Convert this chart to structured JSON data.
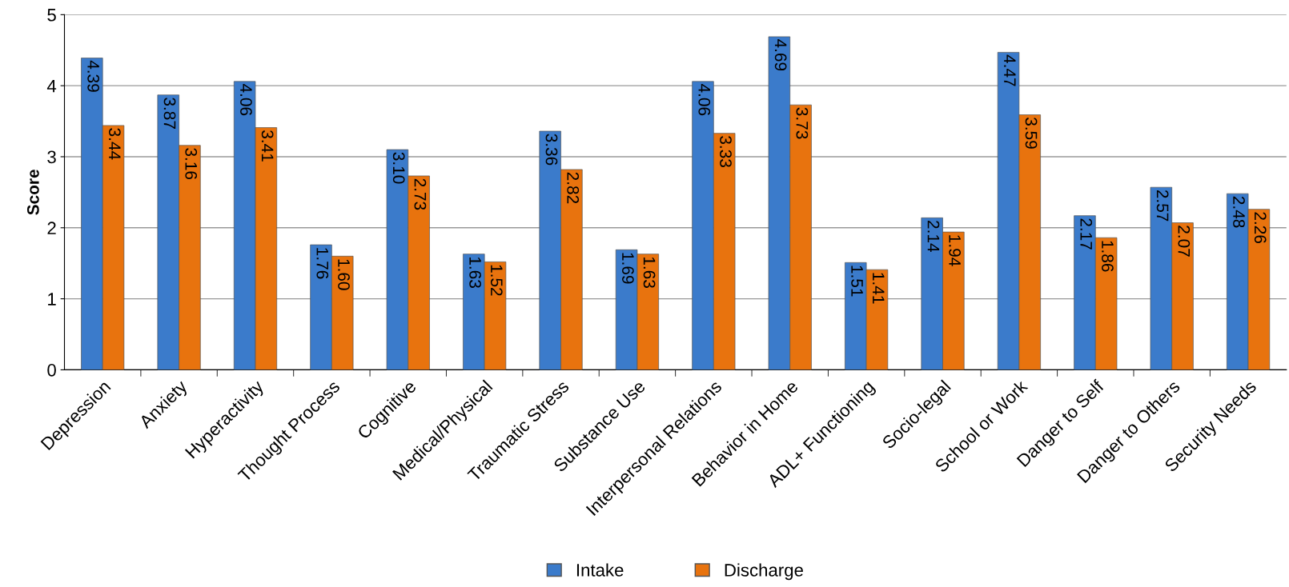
{
  "chart_data": {
    "type": "bar",
    "ylabel": "Score",
    "categories": [
      "Depression",
      "Anxiety",
      "Hyperactivity",
      "Thought Process",
      "Cognitive",
      "Medical/Physical",
      "Traumatic Stress",
      "Substance Use",
      "Interpersonal Relations",
      "Behavior in Home",
      "ADL+ Functioning",
      "Socio-legal",
      "School or Work",
      "Danger to Self",
      "Danger to Others",
      "Security Needs"
    ],
    "series": [
      {
        "name": "Intake",
        "color": "#3b7bcb",
        "values": [
          4.39,
          3.87,
          4.06,
          1.76,
          3.1,
          1.63,
          3.36,
          1.69,
          4.06,
          4.69,
          1.51,
          2.14,
          4.47,
          2.17,
          2.57,
          2.48
        ],
        "value_labels": [
          "4.39",
          "3.87",
          "4.06",
          "1.76",
          "3.10",
          "1.63",
          "3.36",
          "1.69",
          "4.06",
          "4.69",
          "1.51",
          "2.14",
          "4.47",
          "2.17",
          "2.57",
          "2.48"
        ]
      },
      {
        "name": "Discharge",
        "color": "#e8730e",
        "values": [
          3.44,
          3.16,
          3.41,
          1.6,
          2.73,
          1.52,
          2.82,
          1.63,
          3.33,
          3.73,
          1.41,
          1.94,
          3.59,
          1.86,
          2.07,
          2.26
        ],
        "value_labels": [
          "3.44",
          "3.16",
          "3.41",
          "1.60",
          "2.73",
          "1.52",
          "2.82",
          "1.63",
          "3.33",
          "3.73",
          "1.41",
          "1.94",
          "3.59",
          "1.86",
          "2.07",
          "2.26"
        ]
      }
    ],
    "ylim": [
      0,
      5
    ],
    "yticks": [
      0,
      1,
      2,
      3,
      4,
      5
    ],
    "grid": "y",
    "legend": "bottom"
  }
}
